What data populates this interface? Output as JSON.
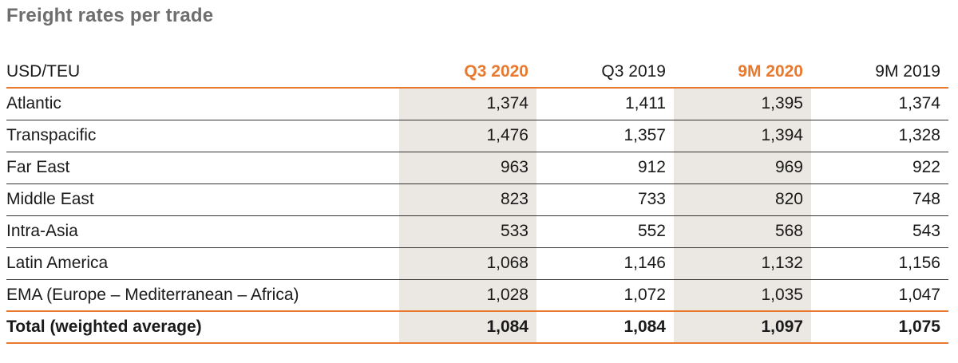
{
  "title": "Freight rates per trade",
  "table": {
    "unit_label": "USD/TEU",
    "columns": [
      {
        "label": "Q3 2020",
        "highlight": true
      },
      {
        "label": "Q3 2019",
        "highlight": false
      },
      {
        "label": "9M 2020",
        "highlight": true
      },
      {
        "label": "9M 2019",
        "highlight": false
      }
    ],
    "rows": [
      {
        "label": "Atlantic",
        "values": [
          "1,374",
          "1,411",
          "1,395",
          "1,374"
        ]
      },
      {
        "label": "Transpacific",
        "values": [
          "1,476",
          "1,357",
          "1,394",
          "1,328"
        ]
      },
      {
        "label": "Far East",
        "values": [
          "963",
          "912",
          "969",
          "922"
        ]
      },
      {
        "label": "Middle East",
        "values": [
          "823",
          "733",
          "820",
          "748"
        ]
      },
      {
        "label": "Intra-Asia",
        "values": [
          "533",
          "552",
          "568",
          "543"
        ]
      },
      {
        "label": "Latin America",
        "values": [
          "1,068",
          "1,146",
          "1,132",
          "1,156"
        ]
      },
      {
        "label": "EMA (Europe – Mediterranean – Africa)",
        "values": [
          "1,028",
          "1,072",
          "1,035",
          "1,047"
        ]
      }
    ],
    "total": {
      "label": "Total (weighted average)",
      "values": [
        "1,084",
        "1,084",
        "1,097",
        "1,075"
      ]
    }
  },
  "colors": {
    "accent": "#e8792e",
    "title": "#6e6e6e",
    "shade": "#ebe7e2"
  }
}
